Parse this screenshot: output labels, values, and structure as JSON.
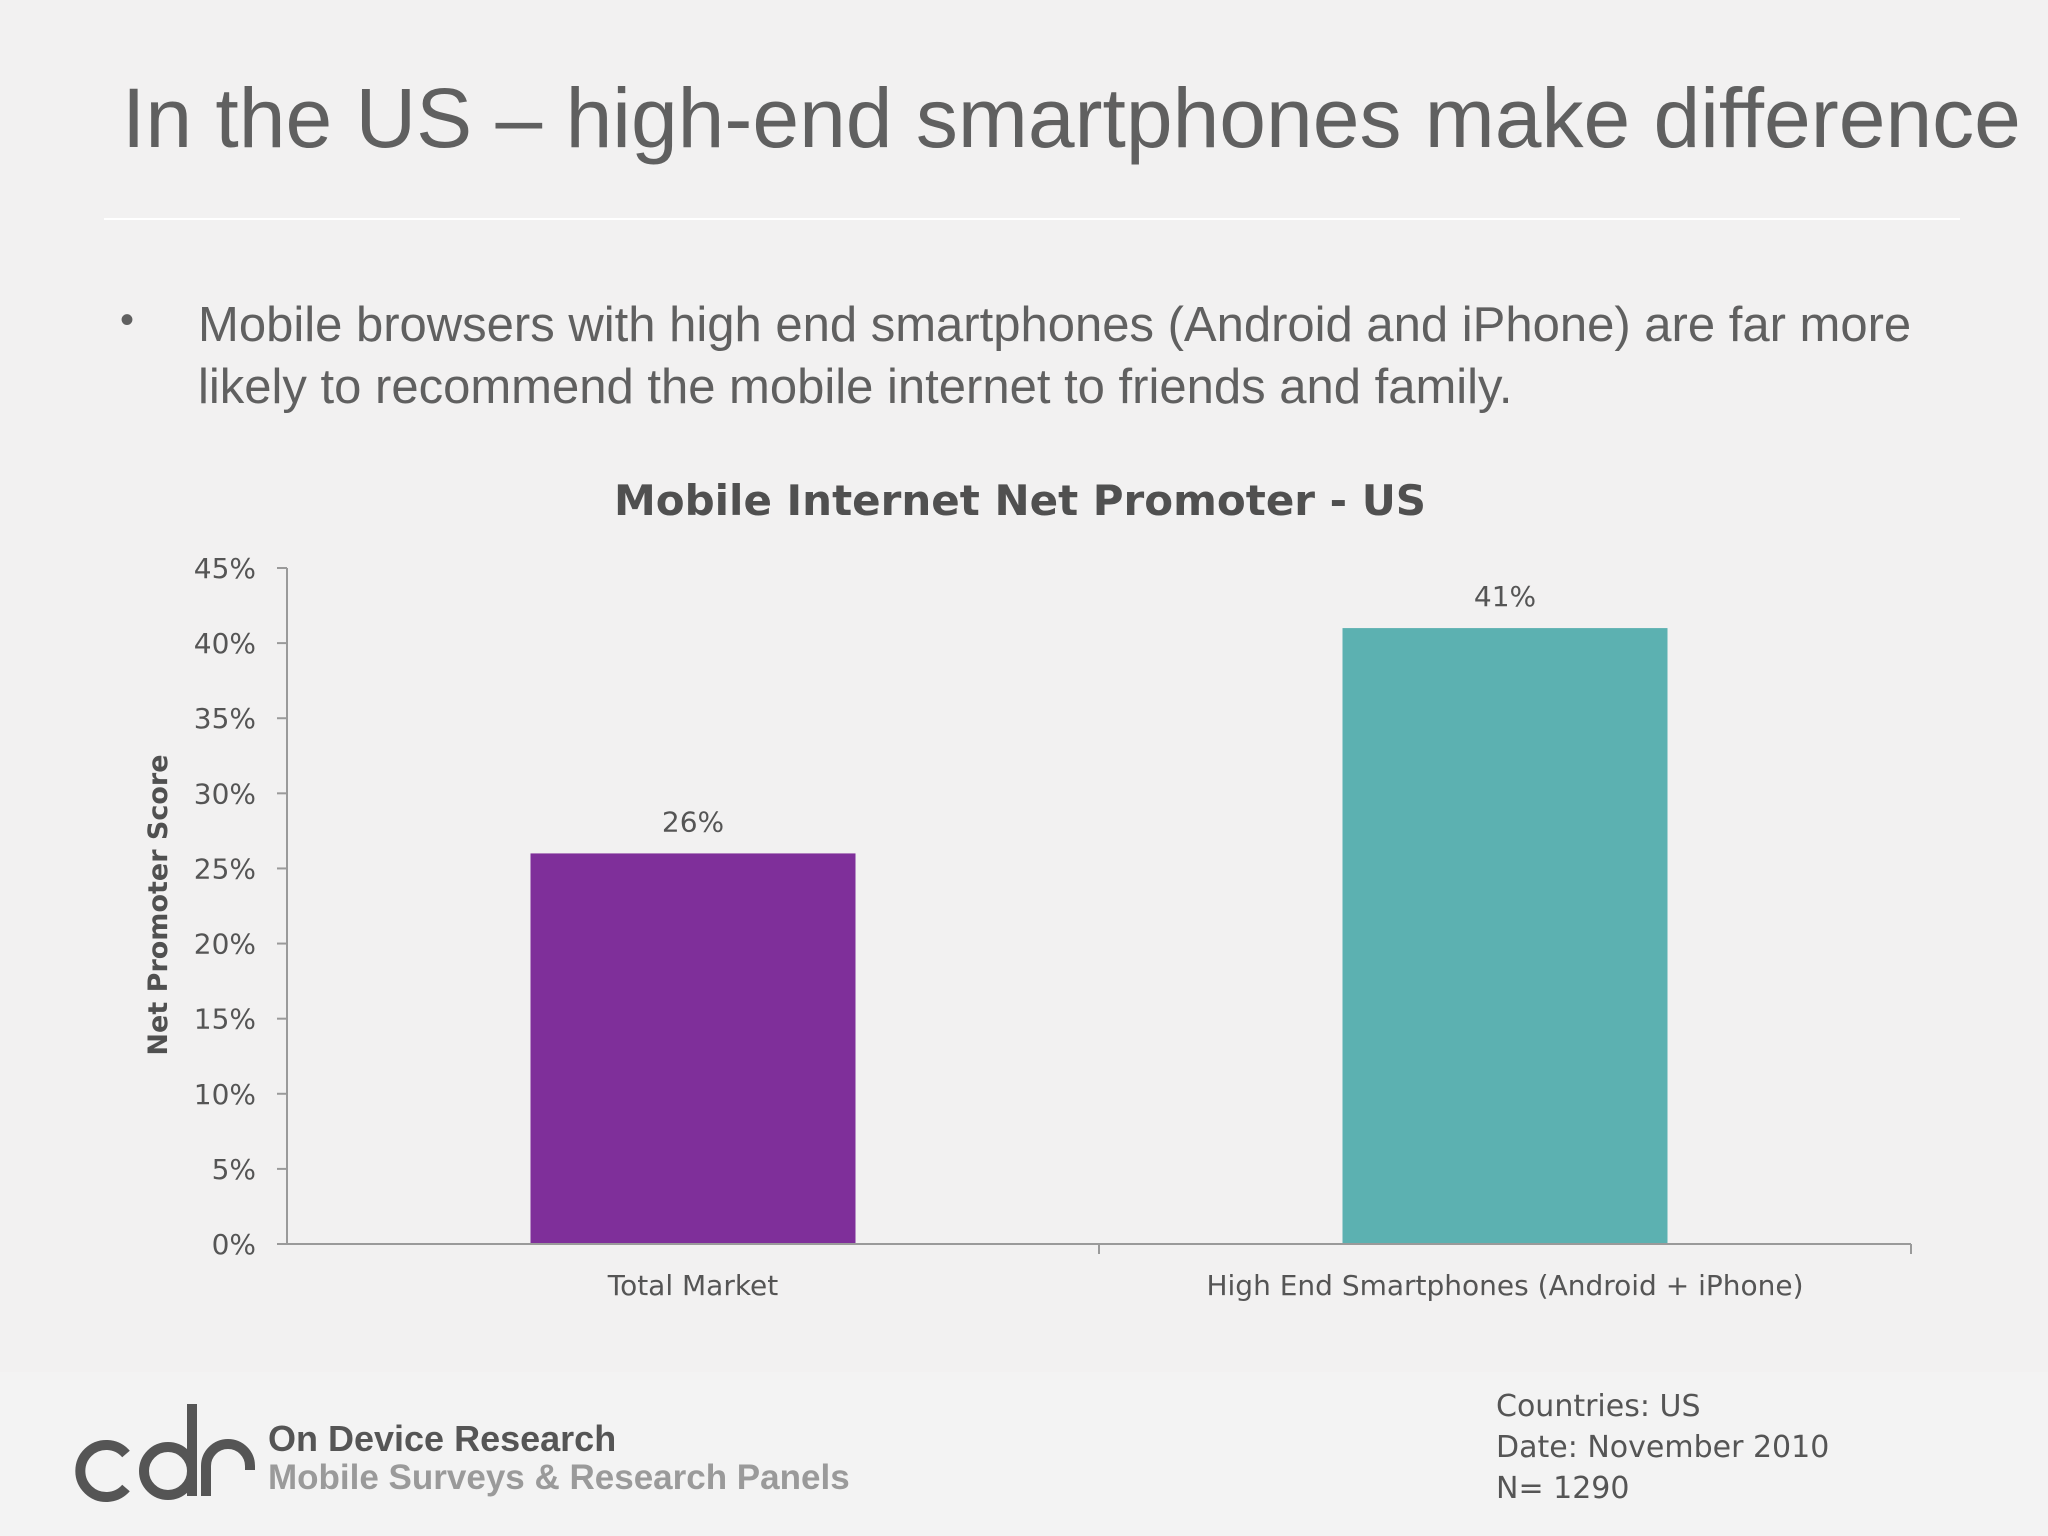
{
  "slide": {
    "title": "In the US – high-end smartphones make difference",
    "bullet": "Mobile browsers with high end smartphones (Android and iPhone) are far more likely to recommend the mobile internet to friends and family."
  },
  "chart_data": {
    "type": "bar",
    "title": "Mobile Internet Net Promoter - US",
    "xlabel": "",
    "ylabel": "Net Promoter Score",
    "categories": [
      "Total Market",
      "High End Smartphones (Android + iPhone)"
    ],
    "values": [
      26,
      41
    ],
    "data_labels": [
      "26%",
      "41%"
    ],
    "bar_colors": [
      "#7f2f9a",
      "#5cb1b1"
    ],
    "ylim": [
      0,
      45
    ],
    "yticks": [
      0,
      5,
      10,
      15,
      20,
      25,
      30,
      35,
      40,
      45
    ],
    "ytick_labels": [
      "0%",
      "5%",
      "10%",
      "15%",
      "20%",
      "25%",
      "30%",
      "35%",
      "40%",
      "45%"
    ],
    "grid": false,
    "legend": "none"
  },
  "footer": {
    "company": "On Device Research",
    "tagline": "Mobile Surveys & Research Panels",
    "notes": [
      "Countries: US",
      "Date:  November 2010",
      "N= 1290"
    ]
  },
  "colors": {
    "background": "#f2f1f1",
    "text": "#606060",
    "purple_bar": "#7f2f9a",
    "teal_bar": "#5cb1b1"
  }
}
